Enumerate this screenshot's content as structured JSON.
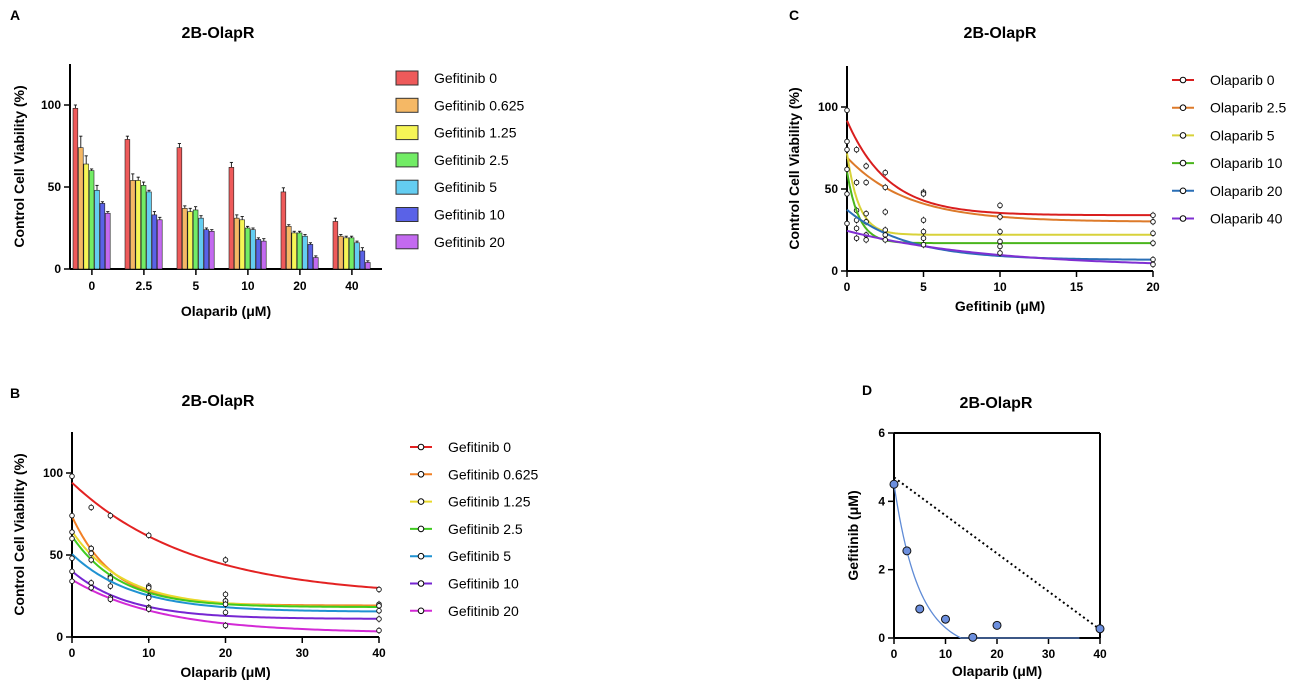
{
  "palette": {
    "gefitinib": [
      "#ee5a5a",
      "#f5b865",
      "#f6f556",
      "#72ec65",
      "#64cdf1",
      "#5a62e7",
      "#c36af0"
    ],
    "gefitinib_lines": [
      "#e32222",
      "#f28025",
      "#e9d92b",
      "#3fcb1f",
      "#1f92d2",
      "#7626d2",
      "#d32ad6"
    ],
    "olaparib_lines": [
      "#d91e1e",
      "#dd7a2a",
      "#d8d23a",
      "#4ab51c",
      "#2a6fb6",
      "#7f2fd2"
    ],
    "fit_line": "#5f8bd6",
    "point_fill": "#6c8fde"
  },
  "chart_data": [
    {
      "panel": "A",
      "type": "bar",
      "title": "2B-OlapR",
      "xlabel": "Olaparib (μM)",
      "ylabel": "Control Cell Viability (%)",
      "ylim": [
        0,
        125
      ],
      "yticks": [
        "0",
        "50",
        "100"
      ],
      "categories": [
        "0",
        "2.5",
        "5",
        "10",
        "20",
        "40"
      ],
      "legend": "right",
      "series": [
        {
          "name": "Gefitinib 0",
          "values": [
            98,
            79,
            74,
            62,
            47,
            29
          ],
          "errors": [
            2,
            2,
            2.5,
            3,
            2.5,
            2
          ]
        },
        {
          "name": "Gefitinib 0.625",
          "values": [
            74,
            54,
            37,
            31,
            26,
            20
          ],
          "errors": [
            7,
            4,
            1.5,
            2,
            1,
            1
          ]
        },
        {
          "name": "Gefitinib 1.25",
          "values": [
            64,
            54,
            35,
            30,
            22,
            19
          ],
          "errors": [
            5,
            2,
            2,
            2,
            1,
            1
          ]
        },
        {
          "name": "Gefitinib 2.5",
          "values": [
            60,
            51,
            36,
            25,
            22,
            19
          ],
          "errors": [
            1,
            2,
            2,
            1,
            1,
            1
          ]
        },
        {
          "name": "Gefitinib 5",
          "values": [
            48,
            47,
            31,
            24,
            20,
            16
          ],
          "errors": [
            3,
            1,
            1.5,
            1,
            1,
            1
          ]
        },
        {
          "name": "Gefitinib 10",
          "values": [
            40,
            33,
            24,
            18,
            15,
            11
          ],
          "errors": [
            1,
            2,
            1,
            1,
            1,
            2
          ]
        },
        {
          "name": "Gefitinib 20",
          "values": [
            34,
            30,
            23,
            17,
            7,
            4
          ],
          "errors": [
            1,
            1.5,
            1,
            1.5,
            1,
            1
          ]
        }
      ]
    },
    {
      "panel": "B",
      "type": "line",
      "title": "2B-OlapR",
      "xlabel": "Olaparib (μM)",
      "ylabel": "Control Cell Viability (%)",
      "xlim": [
        0,
        40
      ],
      "ylim": [
        0,
        125
      ],
      "xticks": [
        "0",
        "10",
        "20",
        "30",
        "40"
      ],
      "yticks": [
        "0",
        "50",
        "100"
      ],
      "x": [
        0,
        2.5,
        5,
        10,
        20,
        40
      ],
      "legend": "right",
      "series": [
        {
          "name": "Gefitinib 0",
          "values": [
            98,
            79,
            74,
            62,
            47,
            29
          ]
        },
        {
          "name": "Gefitinib 0.625",
          "values": [
            74,
            54,
            37,
            31,
            26,
            20
          ]
        },
        {
          "name": "Gefitinib 1.25",
          "values": [
            64,
            54,
            35,
            30,
            22,
            19
          ]
        },
        {
          "name": "Gefitinib 2.5",
          "values": [
            60,
            51,
            36,
            25,
            22,
            19
          ]
        },
        {
          "name": "Gefitinib 5",
          "values": [
            48,
            47,
            31,
            24,
            20,
            16
          ]
        },
        {
          "name": "Gefitinib 10",
          "values": [
            40,
            33,
            24,
            18,
            15,
            11
          ]
        },
        {
          "name": "Gefitinib 20",
          "values": [
            34,
            30,
            23,
            17,
            7,
            4
          ]
        }
      ]
    },
    {
      "panel": "C",
      "type": "line",
      "title": "2B-OlapR",
      "xlabel": "Gefitinib (μM)",
      "ylabel": "Control Cell Viability (%)",
      "xlim": [
        0,
        20
      ],
      "ylim": [
        0,
        125
      ],
      "xticks": [
        "0",
        "5",
        "10",
        "15",
        "20"
      ],
      "yticks": [
        "0",
        "50",
        "100"
      ],
      "x": [
        0,
        0.625,
        1.25,
        2.5,
        5,
        10,
        20
      ],
      "legend": "right",
      "series": [
        {
          "name": "Olaparib 0",
          "values": [
            98,
            74,
            64,
            60,
            48,
            40,
            34
          ]
        },
        {
          "name": "Olaparib 2.5",
          "values": [
            79,
            54,
            54,
            51,
            47,
            33,
            30
          ]
        },
        {
          "name": "Olaparib 5",
          "values": [
            74,
            37,
            35,
            36,
            31,
            24,
            23
          ]
        },
        {
          "name": "Olaparib 10",
          "values": [
            62,
            31,
            30,
            25,
            24,
            18,
            17
          ]
        },
        {
          "name": "Olaparib 20",
          "values": [
            47,
            26,
            22,
            22,
            20,
            15,
            7
          ]
        },
        {
          "name": "Olaparib 40",
          "values": [
            29,
            20,
            19,
            19,
            16,
            11,
            4
          ]
        }
      ]
    },
    {
      "panel": "D",
      "type": "scatter",
      "title": "2B-OlapR",
      "xlabel": "Olaparib (μM)",
      "ylabel": "Gefitinib (μM)",
      "xlim": [
        0,
        40
      ],
      "ylim": [
        0,
        6
      ],
      "xticks": [
        "0",
        "10",
        "20",
        "30",
        "40"
      ],
      "yticks": [
        "0",
        "2",
        "4",
        "6"
      ],
      "points": [
        {
          "x": 0,
          "y": 4.5
        },
        {
          "x": 2.5,
          "y": 2.55
        },
        {
          "x": 5,
          "y": 0.85
        },
        {
          "x": 10,
          "y": 0.55
        },
        {
          "x": 15.3,
          "y": 0.02
        },
        {
          "x": 20,
          "y": 0.37
        },
        {
          "x": 40,
          "y": 0.27
        }
      ],
      "additivity_line": [
        [
          0,
          4.7
        ],
        [
          40,
          0.25
        ]
      ]
    }
  ]
}
